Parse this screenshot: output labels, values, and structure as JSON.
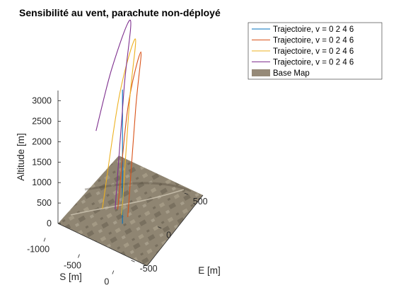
{
  "chart_data": {
    "type": "line",
    "title": "Sensibilité au vent, parachute non-déployé",
    "xlabel": "S [m]",
    "ylabel": "E [m]",
    "zlabel": "Altitude [m]",
    "x_ticks": [
      "-1000",
      "-500",
      "0"
    ],
    "y_ticks": [
      "500",
      "0",
      "-500"
    ],
    "z_ticks": [
      "0",
      "500",
      "1000",
      "1500",
      "2000",
      "2500",
      "3000"
    ],
    "xlim": [
      -1200,
      100
    ],
    "ylim": [
      -700,
      700
    ],
    "zlim": [
      0,
      3300
    ],
    "grid": false,
    "legend_position": "top-right",
    "legend": [
      {
        "label": "Trajectoire, v = 0   2   4   6",
        "color": "#0072BD"
      },
      {
        "label": "Trajectoire, v = 0   2   4   6",
        "color": "#D95319"
      },
      {
        "label": "Trajectoire, v = 0   2   4   6",
        "color": "#EDB120"
      },
      {
        "label": "Trajectoire, v = 0   2   4   6",
        "color": "#7E2F8E"
      },
      {
        "label": "Base Map",
        "color": "#968A78"
      }
    ],
    "series": [
      {
        "color": "#0072BD",
        "wind": 0,
        "x": [
          -300,
          -300,
          -300
        ],
        "y": [
          -150,
          -150,
          -150
        ],
        "z": [
          3280,
          1600,
          0
        ]
      },
      {
        "color": "#D95319",
        "wind": 2,
        "x": [
          -470,
          -430,
          -380,
          -340,
          -300
        ],
        "y": [
          -20,
          120,
          300,
          150,
          -50
        ],
        "z": [
          0,
          2300,
          3400,
          2300,
          0
        ]
      },
      {
        "color": "#EDB120",
        "wind": 4,
        "x": [
          -640,
          -580,
          -500,
          -430,
          -380
        ],
        "y": [
          -90,
          150,
          350,
          150,
          -60
        ],
        "z": [
          0,
          2400,
          3540,
          2400,
          0
        ]
      },
      {
        "color": "#7E2F8E",
        "wind": 6,
        "x": [
          -810,
          -740,
          -650,
          -570,
          -500
        ],
        "y": [
          10,
          220,
          450,
          230,
          -30
        ],
        "z": [
          1600,
          2850,
          3710,
          2500,
          0
        ]
      }
    ]
  }
}
